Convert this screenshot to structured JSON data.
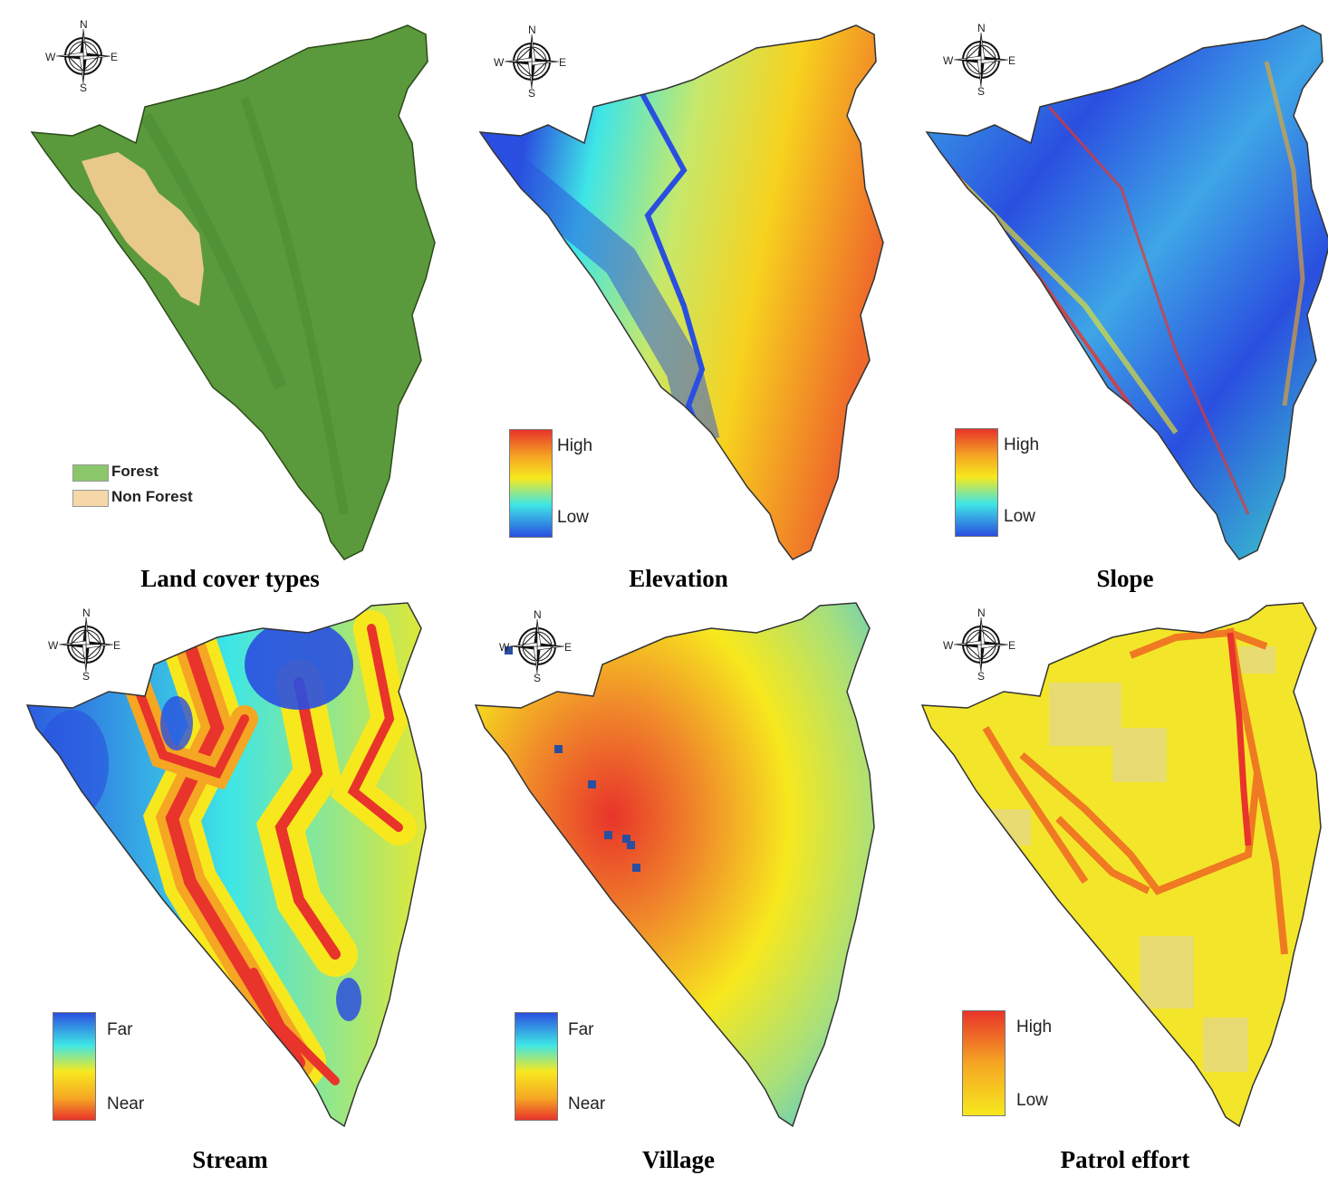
{
  "colors": {
    "forest": "#5a9a3c",
    "non_forest": "#e8c98a",
    "ramp_high_low": [
      "#e8342a",
      "#f5a623",
      "#f7e81e",
      "#3ee6e6",
      "#2a4fe0"
    ],
    "ramp_far_near": [
      "#2a4fe0",
      "#3ee6e6",
      "#f7e81e",
      "#f5a623",
      "#e8342a"
    ],
    "ramp_patrol": [
      "#e8342a",
      "#f5a623",
      "#f7e81e"
    ]
  },
  "compass": {
    "n": "N",
    "s": "S",
    "e": "E",
    "w": "W",
    "icon": "compass-rose-icon"
  },
  "panels": [
    {
      "id": "land-cover",
      "caption": "Land cover types",
      "legend_type": "categorical",
      "legend": [
        {
          "label": "Forest",
          "color": "#8ac76a"
        },
        {
          "label": "Non Forest",
          "color": "#f5d7a8"
        }
      ]
    },
    {
      "id": "elevation",
      "caption": "Elevation",
      "legend_type": "ramp",
      "legend_top": "High",
      "legend_bottom": "Low"
    },
    {
      "id": "slope",
      "caption": "Slope",
      "legend_type": "ramp",
      "legend_top": "High",
      "legend_bottom": "Low"
    },
    {
      "id": "stream",
      "caption": "Stream",
      "legend_type": "ramp",
      "legend_top": "Far",
      "legend_bottom": "Near"
    },
    {
      "id": "village",
      "caption": "Village",
      "legend_type": "ramp",
      "legend_top": "Far",
      "legend_bottom": "Near"
    },
    {
      "id": "patrol",
      "caption": "Patrol effort",
      "legend_type": "ramp",
      "legend_top": "High",
      "legend_bottom": "Low"
    }
  ]
}
